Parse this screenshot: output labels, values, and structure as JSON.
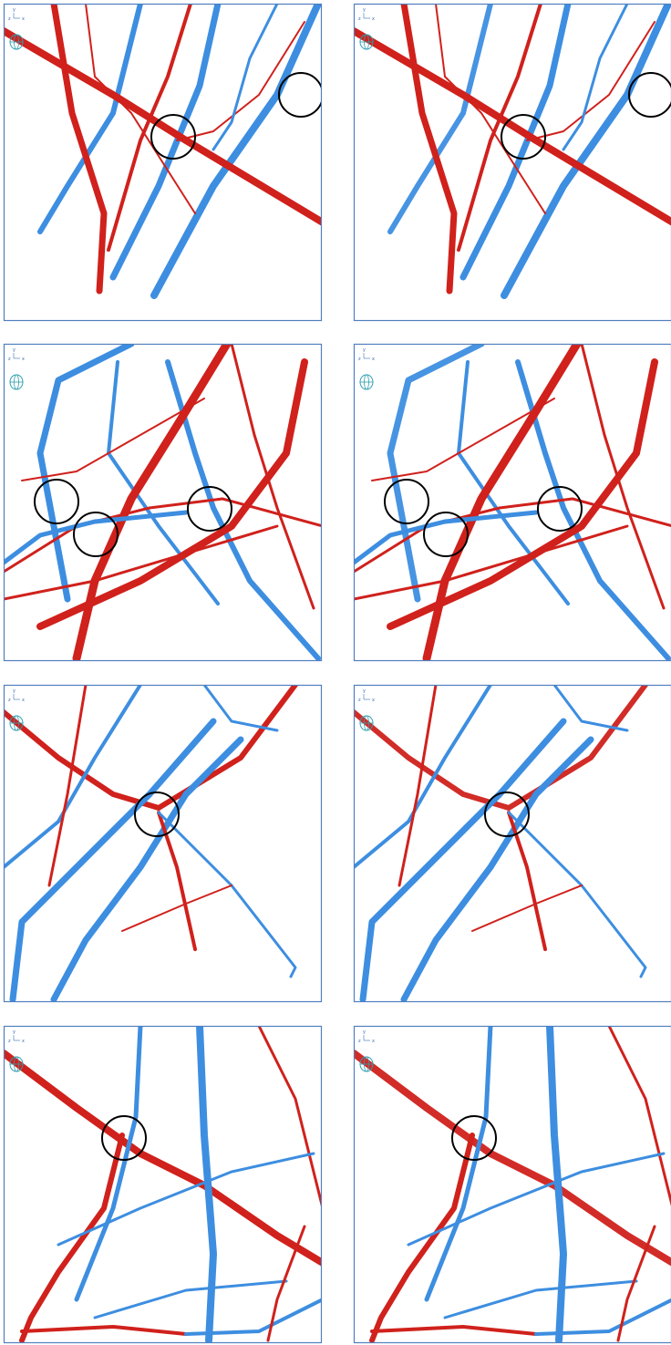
{
  "axis_labels": {
    "vertical": "y",
    "left": "z",
    "right": "x"
  }
}
